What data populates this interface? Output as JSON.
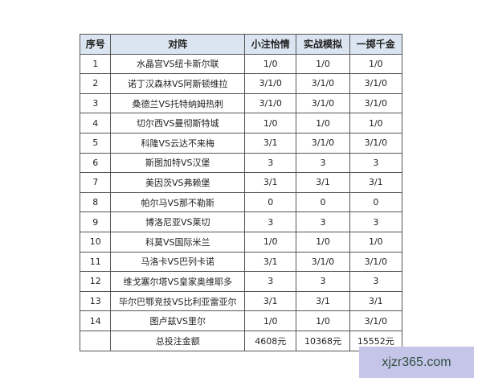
{
  "headers": [
    "序号",
    "对阵",
    "小注怡情",
    "实战模拟",
    "一掷千金"
  ],
  "rows": [
    [
      "1",
      "水晶宫VS纽卡斯尔联",
      "1/0",
      "1/0",
      "1/0"
    ],
    [
      "2",
      "诺丁汉森林VS阿斯顿维拉",
      "3/1/0",
      "3/1/0",
      "3/1/0"
    ],
    [
      "3",
      "桑德兰VS托特纳姆热刺",
      "3/1/0",
      "3/1/0",
      "3/1/0"
    ],
    [
      "4",
      "切尔西VS曼彻斯特城",
      "1/0",
      "1/0",
      "1/0"
    ],
    [
      "5",
      "科隆VS云达不来梅",
      "3/1",
      "3/1/0",
      "3/1/0"
    ],
    [
      "6",
      "斯图加特VS汉堡",
      "3",
      "3",
      "3"
    ],
    [
      "7",
      "美因茨VS弗赖堡",
      "3/1",
      "3/1",
      "3/1"
    ],
    [
      "8",
      "帕尔马VS那不勒斯",
      "0",
      "0",
      "0"
    ],
    [
      "9",
      "博洛尼亚VS莱切",
      "3",
      "3",
      "3"
    ],
    [
      "10",
      "科莫VS国际米兰",
      "1/0",
      "1/0",
      "1/0"
    ],
    [
      "11",
      "马洛卡VS巴列卡诺",
      "3/1",
      "3/1/0",
      "3/1/0"
    ],
    [
      "12",
      "维戈塞尔塔VS皇家奥维耶多",
      "3",
      "3",
      "3"
    ],
    [
      "13",
      "毕尔巴鄂竞技VS比利亚雷亚尔",
      "3/1",
      "3/1",
      "3/1"
    ],
    [
      "14",
      "图卢兹VS里尔",
      "1/0",
      "1/0",
      "3/1/0"
    ]
  ],
  "total": {
    "label": "总投注金额",
    "values": [
      "4608元",
      "10368元",
      "15552元"
    ]
  },
  "watermark": "xjzr365.com",
  "colors": {
    "header_bg": "#dbe5f1",
    "watermark_bg": "#c5c5ea"
  }
}
